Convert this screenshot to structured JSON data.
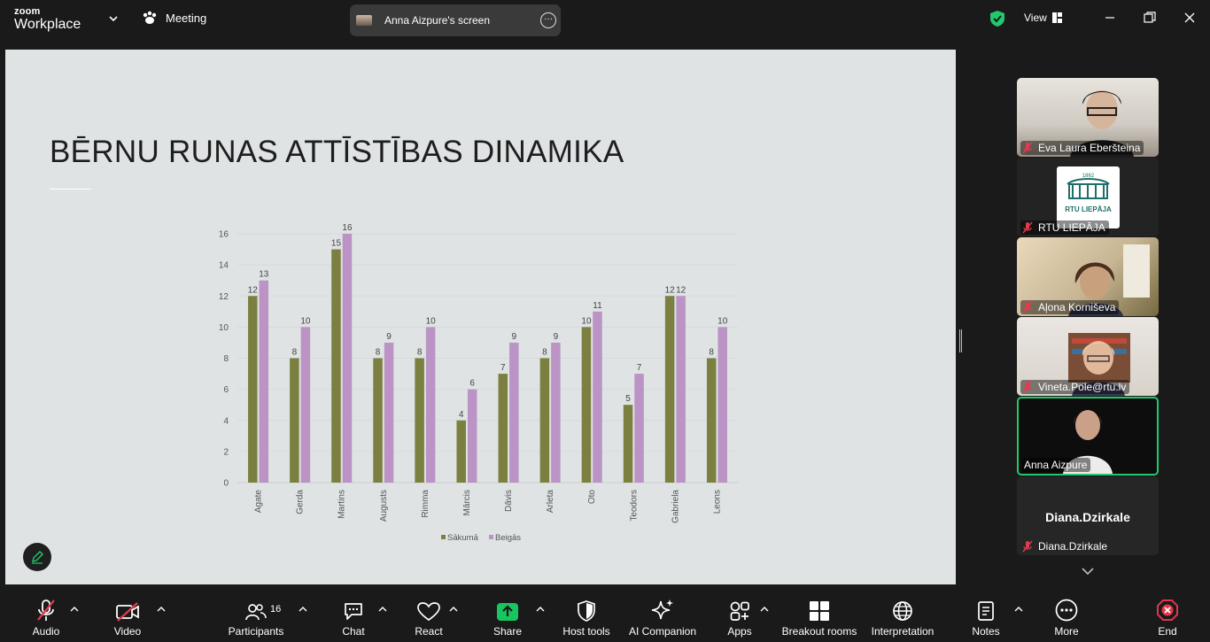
{
  "app": {
    "logo_line1": "zoom",
    "logo_line2": "Workplace",
    "meeting_label": "Meeting",
    "screen_label": "Anna Aizpure's screen",
    "view_label": "View"
  },
  "slide": {
    "title": "BĒRNU RUNAS ATTĪSTĪBAS DINAMIKA"
  },
  "chart_data": {
    "type": "bar",
    "categories": [
      "Agate",
      "Gerda",
      "Martins",
      "Augusts",
      "Rimma",
      "Mārcis",
      "Dāvis",
      "Arleta",
      "Oto",
      "Teodors",
      "Gabriela",
      "Leons"
    ],
    "series": [
      {
        "name": "Sākumā",
        "color": "#7b8040",
        "values": [
          12,
          8,
          15,
          8,
          8,
          4,
          7,
          8,
          10,
          5,
          12,
          8
        ]
      },
      {
        "name": "Beigās",
        "color": "#bb94c5",
        "values": [
          13,
          10,
          16,
          9,
          10,
          6,
          9,
          9,
          11,
          7,
          12,
          10
        ]
      }
    ],
    "ylim": [
      0,
      16
    ],
    "yticks": [
      0,
      2,
      4,
      6,
      8,
      10,
      12,
      14,
      16
    ],
    "legend": "bottom",
    "grid": true
  },
  "participants": [
    {
      "name": "Eva Laura Eberšteina",
      "kind": "video"
    },
    {
      "name": "RTU LIEPĀJA",
      "kind": "logo",
      "logo_text": "RTU LIEPĀJA",
      "logo_year": "1862"
    },
    {
      "name": "Aļona Korniševa",
      "kind": "video"
    },
    {
      "name": "Vineta.Pole@rtu.lv",
      "kind": "video"
    },
    {
      "name": "Anna Aizpure",
      "kind": "video"
    },
    {
      "name": "Diana.Dzirkale",
      "kind": "name-only",
      "big_name": "Diana.Dzirkale"
    }
  ],
  "toolbar": {
    "audio": "Audio",
    "video": "Video",
    "participants": "Participants",
    "participants_count": "16",
    "chat": "Chat",
    "react": "React",
    "share": "Share",
    "host_tools": "Host tools",
    "ai_companion": "AI Companion",
    "apps": "Apps",
    "breakout": "Breakout rooms",
    "interpretation": "Interpretation",
    "notes": "Notes",
    "more": "More",
    "end": "End"
  },
  "colors": {
    "accent_green": "#21c86e",
    "share_green": "#17c65f",
    "end_red": "#e0354a",
    "muted_red": "#e03c4d"
  }
}
